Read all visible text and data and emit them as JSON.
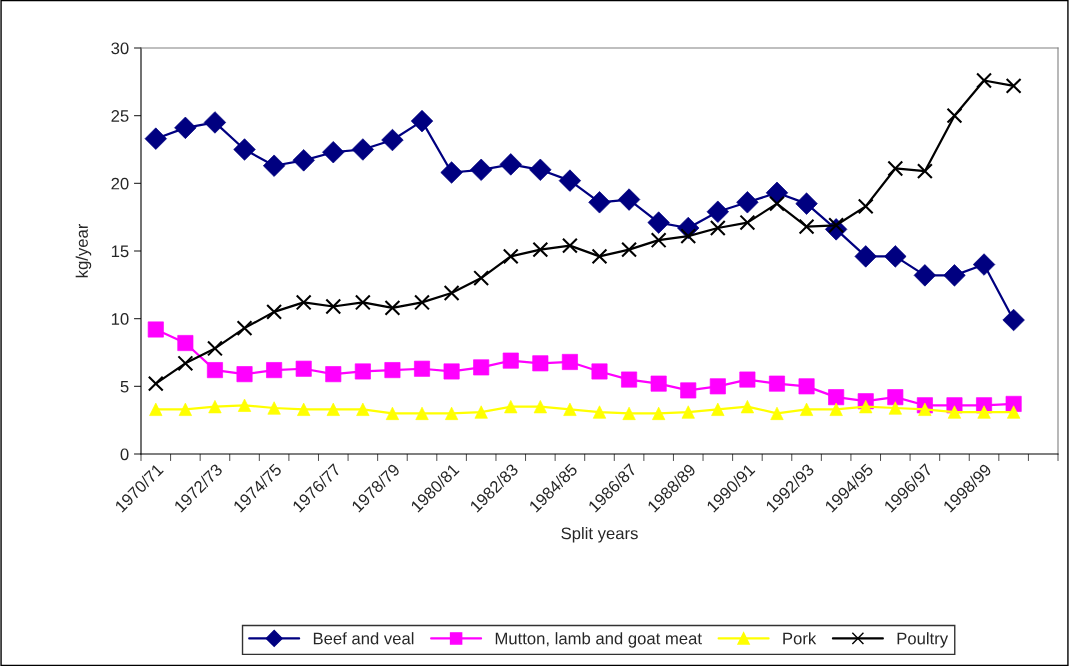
{
  "chart_data": {
    "type": "line",
    "xlabel": "Split years",
    "ylabel": "kg/year",
    "categories": [
      "1970/71",
      null,
      "1972/73",
      null,
      "1974/75",
      null,
      "1976/77",
      null,
      "1978/79",
      null,
      "1980/81",
      null,
      "1982/83",
      null,
      "1984/85",
      null,
      "1986/87",
      null,
      "1988/89",
      null,
      "1990/91",
      null,
      "1992/93",
      null,
      "1994/95",
      null,
      "1996/97",
      null,
      "1998/99",
      null,
      null
    ],
    "ylim": [
      0,
      30
    ],
    "yticks": [
      0,
      5,
      10,
      15,
      20,
      25,
      30
    ],
    "grid": false,
    "legend": "bottom",
    "series": [
      {
        "name": "Beef and veal",
        "color": "#000080",
        "marker": "diamond",
        "values": [
          23.3,
          24.1,
          24.5,
          22.5,
          21.3,
          21.7,
          22.3,
          22.5,
          23.2,
          24.6,
          20.8,
          21.0,
          21.4,
          21.0,
          20.2,
          18.6,
          18.8,
          17.1,
          16.7,
          17.9,
          18.6,
          19.3,
          18.5,
          16.6,
          14.6,
          14.6,
          13.2,
          13.2,
          14.0,
          9.9,
          null
        ]
      },
      {
        "name": "Mutton, lamb and goat meat",
        "color": "#ff00ff",
        "marker": "square",
        "values": [
          9.2,
          8.2,
          6.2,
          5.9,
          6.2,
          6.3,
          5.9,
          6.1,
          6.2,
          6.3,
          6.1,
          6.4,
          6.9,
          6.7,
          6.8,
          6.1,
          5.5,
          5.2,
          4.7,
          5.0,
          5.5,
          5.2,
          5.0,
          4.2,
          3.9,
          4.2,
          3.6,
          3.6,
          3.6,
          3.7,
          null
        ]
      },
      {
        "name": "Pork",
        "color": "#ffff00",
        "marker": "triangle",
        "values": [
          3.3,
          3.3,
          3.5,
          3.6,
          3.4,
          3.3,
          3.3,
          3.3,
          3.0,
          3.0,
          3.0,
          3.1,
          3.5,
          3.5,
          3.3,
          3.1,
          3.0,
          3.0,
          3.1,
          3.3,
          3.5,
          3.0,
          3.3,
          3.3,
          3.5,
          3.4,
          3.3,
          3.1,
          3.1,
          3.1,
          null
        ]
      },
      {
        "name": "Poultry",
        "color": "#000000",
        "marker": "cross",
        "values": [
          5.2,
          6.7,
          7.8,
          9.3,
          10.5,
          11.2,
          10.9,
          11.2,
          10.8,
          11.2,
          11.9,
          13.0,
          14.6,
          15.1,
          15.4,
          14.6,
          15.1,
          15.8,
          16.1,
          16.7,
          17.1,
          18.5,
          16.8,
          16.9,
          18.3,
          21.1,
          20.9,
          25.0,
          27.6,
          27.2,
          null
        ]
      }
    ]
  }
}
